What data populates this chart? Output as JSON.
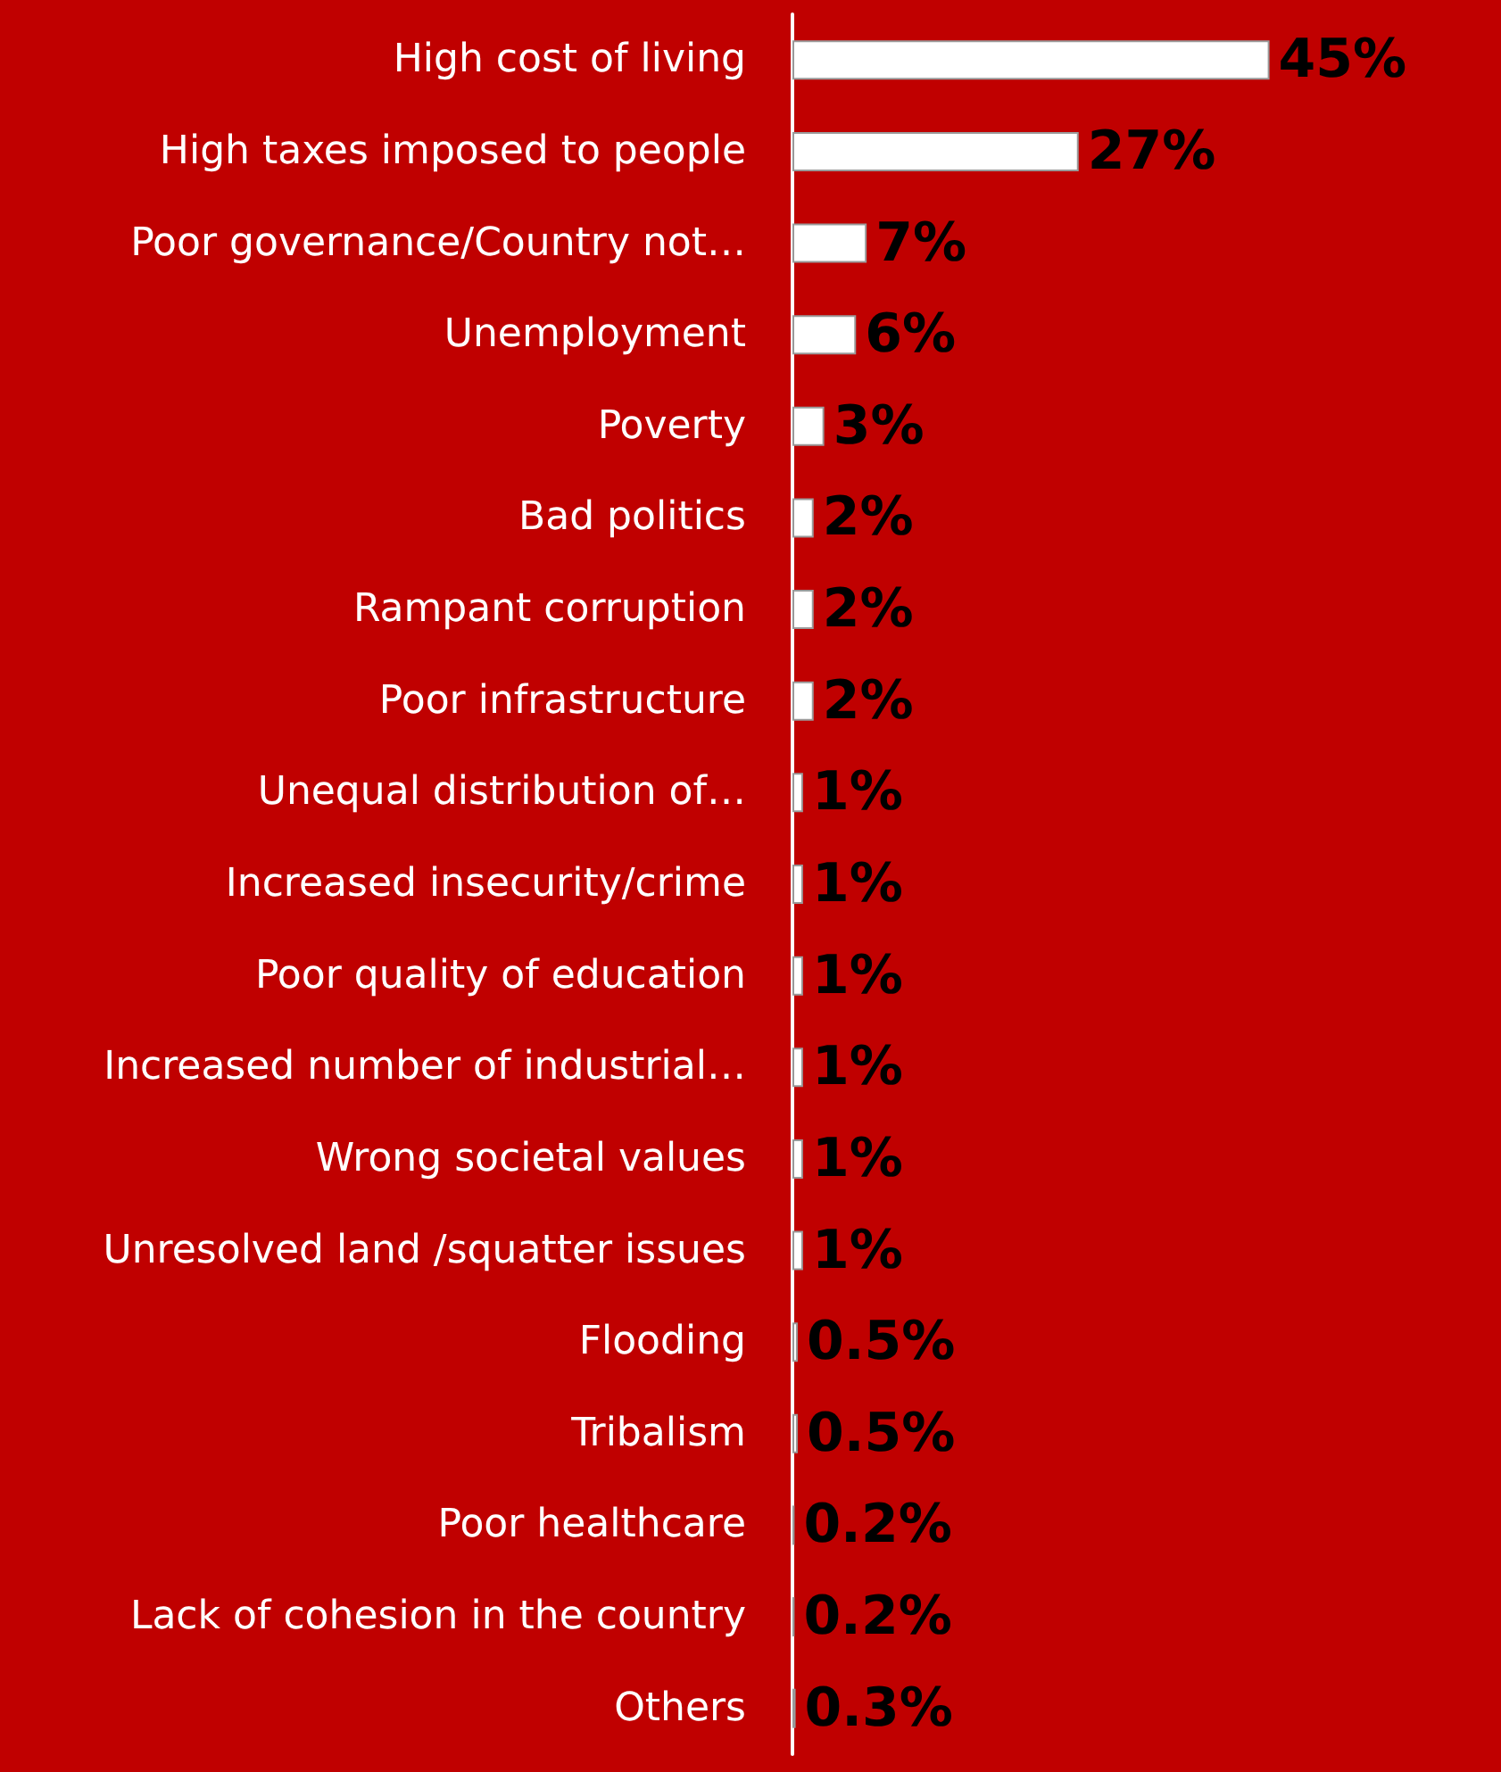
{
  "chart_data": {
    "type": "bar",
    "orientation": "horizontal",
    "color": "#ffffff",
    "categories": [
      "High cost of living",
      "High taxes imposed to people",
      "Poor governance/Country not…",
      "Unemployment",
      "Poverty",
      "Bad politics",
      "Rampant corruption",
      "Poor infrastructure",
      "Unequal distribution of…",
      "Increased insecurity/crime",
      "Poor quality of education",
      "Increased number of industrial…",
      "Wrong societal values",
      "Unresolved land /squatter issues",
      "Flooding",
      "Tribalism",
      "Poor healthcare",
      "Lack of cohesion in the country",
      "Others"
    ],
    "values": [
      45,
      27,
      7,
      6,
      3,
      2,
      2,
      2,
      1,
      1,
      1,
      1,
      1,
      1,
      0.5,
      0.5,
      0.2,
      0.2,
      0.3
    ],
    "value_labels": [
      "45%",
      "27%",
      "7%",
      "6%",
      "3%",
      "2%",
      "2%",
      "2%",
      "1%",
      "1%",
      "1%",
      "1%",
      "1%",
      "1%",
      "0.5%",
      "0.5%",
      "0.2%",
      "0.2%",
      "0.3%"
    ]
  }
}
